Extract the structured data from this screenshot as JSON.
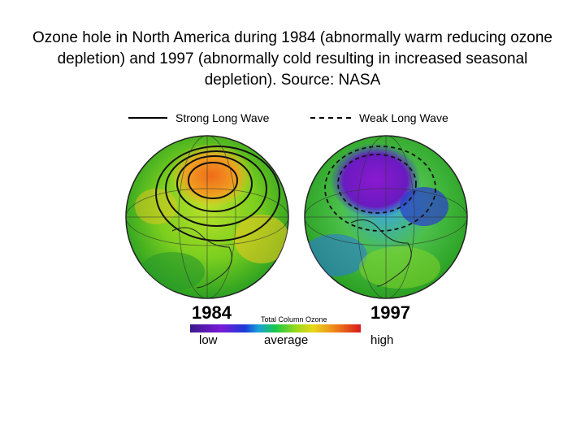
{
  "caption": "Ozone hole in North America during 1984 (abnormally warm reducing ozone depletion) and 1997 (abnormally cold resulting in increased seasonal depletion). Source: NASA",
  "legend": {
    "strong": "Strong Long Wave",
    "weak": "Weak Long Wave"
  },
  "globes": {
    "left_year": "1984",
    "right_year": "1997"
  },
  "scale": {
    "title": "Total Column Ozone",
    "low": "low",
    "average": "average",
    "high": "high"
  }
}
